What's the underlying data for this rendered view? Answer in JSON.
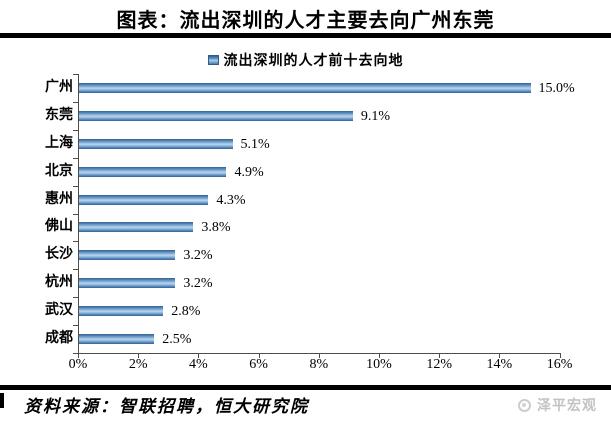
{
  "title": "图表：流出深圳的人才主要去向广州东莞",
  "source": "资料来源：智联招聘，恒大研究院",
  "watermark": "泽平宏观",
  "colors": {
    "bar_edge": "#2d5c8e",
    "bar_mid": "#5d8fc2",
    "bar_highlight": "#b9d4ec",
    "legend_marker": "#4f81bd",
    "rule": "#000000",
    "axis": "#4d4d4d",
    "watermark_gray": "#c3c3c3"
  },
  "chart_data": {
    "type": "bar",
    "orientation": "horizontal",
    "title": "图表：流出深圳的人才主要去向广州东莞",
    "legend": "流出深圳的人才前十去向地",
    "legend_position": "top",
    "categories": [
      "广州",
      "东莞",
      "上海",
      "北京",
      "惠州",
      "佛山",
      "长沙",
      "杭州",
      "武汉",
      "成都"
    ],
    "values": [
      15.0,
      9.1,
      5.1,
      4.9,
      4.3,
      3.8,
      3.2,
      3.2,
      2.8,
      2.5
    ],
    "data_labels": [
      "15.0%",
      "9.1%",
      "5.1%",
      "4.9%",
      "4.3%",
      "3.8%",
      "3.2%",
      "3.2%",
      "2.8%",
      "2.5%"
    ],
    "x_ticks": [
      "0%",
      "2%",
      "4%",
      "6%",
      "8%",
      "10%",
      "12%",
      "14%",
      "16%"
    ],
    "x_tick_values": [
      0,
      2,
      4,
      6,
      8,
      10,
      12,
      14,
      16
    ],
    "xlim": [
      0,
      16
    ],
    "xlabel": "",
    "ylabel": "",
    "grid": false
  }
}
